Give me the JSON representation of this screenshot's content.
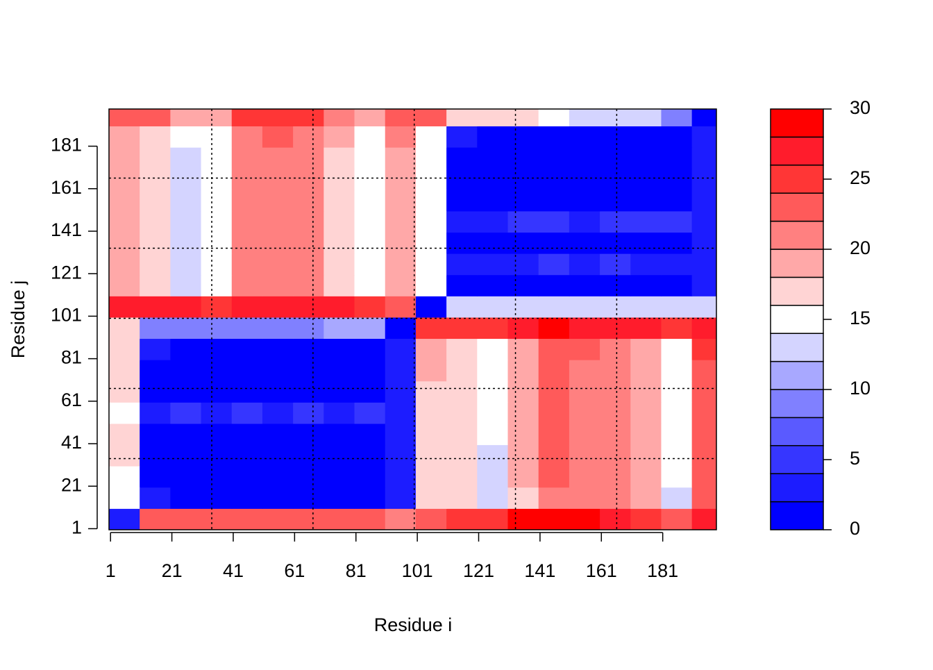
{
  "chart_data": {
    "type": "heatmap",
    "x_label": "Residue i",
    "y_label": "Residue j",
    "xlim": [
      0.5,
      198.5
    ],
    "ylim": [
      0.5,
      198.5
    ],
    "xticks": [
      1,
      21,
      41,
      61,
      81,
      101,
      121,
      141,
      161,
      181
    ],
    "yticks": [
      1,
      21,
      41,
      61,
      81,
      101,
      121,
      141,
      161,
      181
    ],
    "dashed_lines": [
      34,
      67,
      100,
      133,
      166
    ],
    "bins": [
      0.5,
      10.5,
      20.5,
      30.5,
      40.5,
      50.5,
      60.5,
      70.5,
      80.5,
      90.5,
      100.5,
      110.5,
      120.5,
      130.5,
      140.5,
      150.5,
      160.5,
      170.5,
      180.5,
      190.5,
      198.5
    ],
    "z": [
      [
        3,
        22,
        22,
        22,
        22,
        22,
        22,
        22,
        22,
        20,
        22,
        24,
        24,
        28,
        28,
        28,
        27,
        24,
        22,
        27
      ],
      [
        15,
        2,
        1,
        1,
        1,
        1,
        1,
        1,
        1,
        2,
        17,
        16,
        13,
        17,
        21,
        21,
        20,
        18,
        13,
        22
      ],
      [
        15,
        1,
        1,
        1,
        1,
        1,
        1,
        1,
        1,
        2,
        17,
        16,
        13,
        18,
        22,
        21,
        20,
        18,
        14,
        23
      ],
      [
        16,
        1,
        1,
        1,
        1,
        1,
        1,
        1,
        1,
        2,
        17,
        16,
        13,
        18,
        22,
        21,
        20,
        18,
        14,
        23
      ],
      [
        16,
        1,
        1,
        1,
        1,
        1,
        1,
        1,
        1,
        2,
        17,
        16,
        14,
        18,
        22,
        21,
        20,
        18,
        14,
        23
      ],
      [
        15,
        2,
        4,
        3,
        4,
        2,
        4,
        3,
        4,
        3,
        17,
        16,
        14,
        18,
        22,
        21,
        20,
        18,
        14,
        23
      ],
      [
        16,
        1,
        1,
        1,
        1,
        1,
        1,
        1,
        1,
        2,
        17,
        16,
        14,
        18,
        22,
        21,
        20,
        18,
        14,
        23
      ],
      [
        16,
        1,
        1,
        1,
        1,
        1,
        1,
        1,
        1,
        2,
        18,
        16,
        14,
        18,
        22,
        21,
        20,
        18,
        14,
        23
      ],
      [
        16,
        2,
        1,
        1,
        1,
        1,
        1,
        1,
        1,
        2,
        18,
        17,
        14,
        18,
        22,
        22,
        21,
        19,
        15,
        24
      ],
      [
        17,
        9,
        9,
        8,
        8,
        9,
        9,
        10,
        10,
        1,
        24,
        25,
        24,
        27,
        28,
        27,
        27,
        26,
        25,
        27
      ],
      [
        27,
        27,
        26,
        25,
        27,
        27,
        26,
        27,
        24,
        22,
        1,
        12,
        13,
        12,
        12,
        12,
        12,
        12,
        12,
        13
      ],
      [
        18,
        17,
        13,
        14,
        20,
        20,
        20,
        17,
        14,
        19,
        15,
        1,
        1,
        1,
        1,
        1,
        1,
        1,
        1,
        2
      ],
      [
        18,
        17,
        13,
        14,
        20,
        21,
        20,
        17,
        14,
        19,
        15,
        2,
        3,
        3,
        4,
        3,
        4,
        2,
        2,
        3
      ],
      [
        18,
        17,
        13,
        14,
        20,
        21,
        20,
        17,
        14,
        19,
        15,
        1,
        1,
        1,
        1,
        1,
        1,
        1,
        1,
        2
      ],
      [
        18,
        17,
        13,
        14,
        20,
        21,
        20,
        17,
        14,
        19,
        15,
        2,
        3,
        4,
        5,
        3,
        4,
        5,
        4,
        3
      ],
      [
        18,
        16,
        13,
        14,
        21,
        21,
        20,
        17,
        14,
        19,
        15,
        1,
        1,
        1,
        1,
        1,
        1,
        1,
        1,
        2
      ],
      [
        18,
        16,
        13,
        14,
        21,
        21,
        20,
        17,
        14,
        19,
        15,
        1,
        1,
        1,
        1,
        1,
        1,
        1,
        1,
        2
      ],
      [
        18,
        16,
        13,
        14,
        21,
        21,
        20,
        17,
        14,
        19,
        14,
        1,
        1,
        1,
        1,
        1,
        1,
        1,
        1,
        2
      ],
      [
        19,
        17,
        14,
        15,
        21,
        22,
        21,
        18,
        15,
        20,
        14,
        2,
        1,
        1,
        1,
        1,
        1,
        1,
        1,
        2
      ],
      [
        22,
        22,
        18,
        19,
        24,
        25,
        24,
        21,
        18,
        22,
        22,
        17,
        16,
        16,
        14,
        13,
        12,
        12,
        8,
        1
      ]
    ],
    "colorbar": {
      "levels": [
        0,
        2,
        4,
        6,
        8,
        10,
        12,
        14,
        16,
        18,
        20,
        22,
        24,
        26,
        28,
        30
      ],
      "colors": [
        "#0000ff",
        "#1c1cff",
        "#3636ff",
        "#5a5aff",
        "#8080ff",
        "#a8a8ff",
        "#d4d4ff",
        "#ffffff",
        "#ffd4d4",
        "#ffa8a8",
        "#ff8080",
        "#ff5a5a",
        "#ff3636",
        "#ff1c2c",
        "#ff0000"
      ],
      "ticks": [
        0,
        5,
        10,
        15,
        20,
        25,
        30
      ]
    }
  }
}
